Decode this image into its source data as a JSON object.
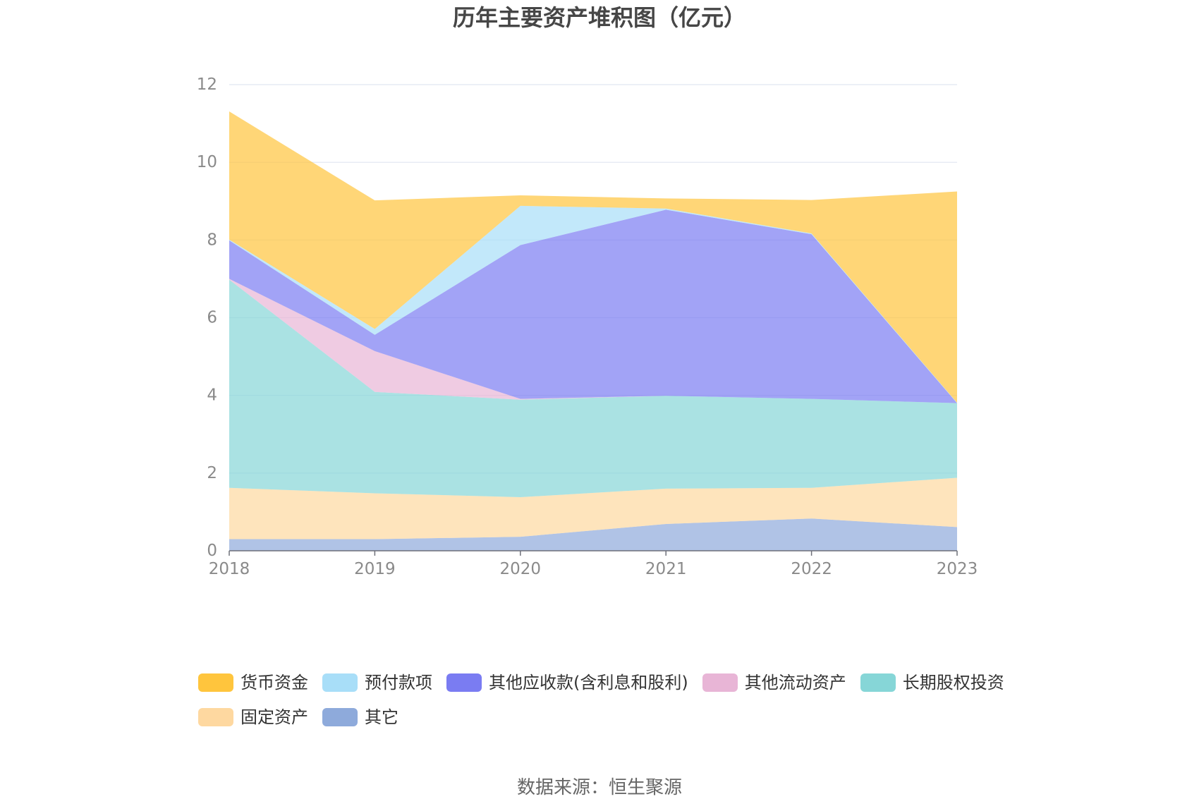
{
  "source": "数据来源：恒生聚源",
  "chart_data": {
    "type": "area",
    "stacked": true,
    "title": "历年主要资产堆积图（亿元）",
    "categories": [
      "2018",
      "2019",
      "2020",
      "2021",
      "2022",
      "2023"
    ],
    "y_ticks": [
      "0",
      "2",
      "4",
      "6",
      "8",
      "10",
      "12"
    ],
    "ylim": [
      0,
      12
    ],
    "grid": true,
    "legend_position": "bottom",
    "series": [
      {
        "name": "货币资金",
        "color": "#FFC53D",
        "values": [
          3.3,
          3.31,
          0.27,
          0.26,
          0.86,
          5.44
        ]
      },
      {
        "name": "预付款项",
        "color": "#A8DEF8",
        "values": [
          0.02,
          0.15,
          1.01,
          0.03,
          0.02,
          0.01
        ]
      },
      {
        "name": "其他应收款(含利息和股利)",
        "color": "#7A7CF2",
        "values": [
          0.99,
          0.42,
          3.96,
          4.79,
          4.24,
          0.0
        ]
      },
      {
        "name": "其他流动资产",
        "color": "#E8B5D6",
        "values": [
          0.02,
          1.05,
          0.02,
          0.0,
          0.0,
          0.0
        ]
      },
      {
        "name": "长期股权投资",
        "color": "#86D6D7",
        "values": [
          5.36,
          2.61,
          2.51,
          2.39,
          2.29,
          1.92
        ]
      },
      {
        "name": "固定资产",
        "color": "#FED8A0",
        "values": [
          1.32,
          1.18,
          1.02,
          0.91,
          0.79,
          1.27
        ]
      },
      {
        "name": "其它",
        "color": "#8EAADB",
        "values": [
          0.3,
          0.3,
          0.36,
          0.69,
          0.83,
          0.61
        ]
      }
    ]
  }
}
